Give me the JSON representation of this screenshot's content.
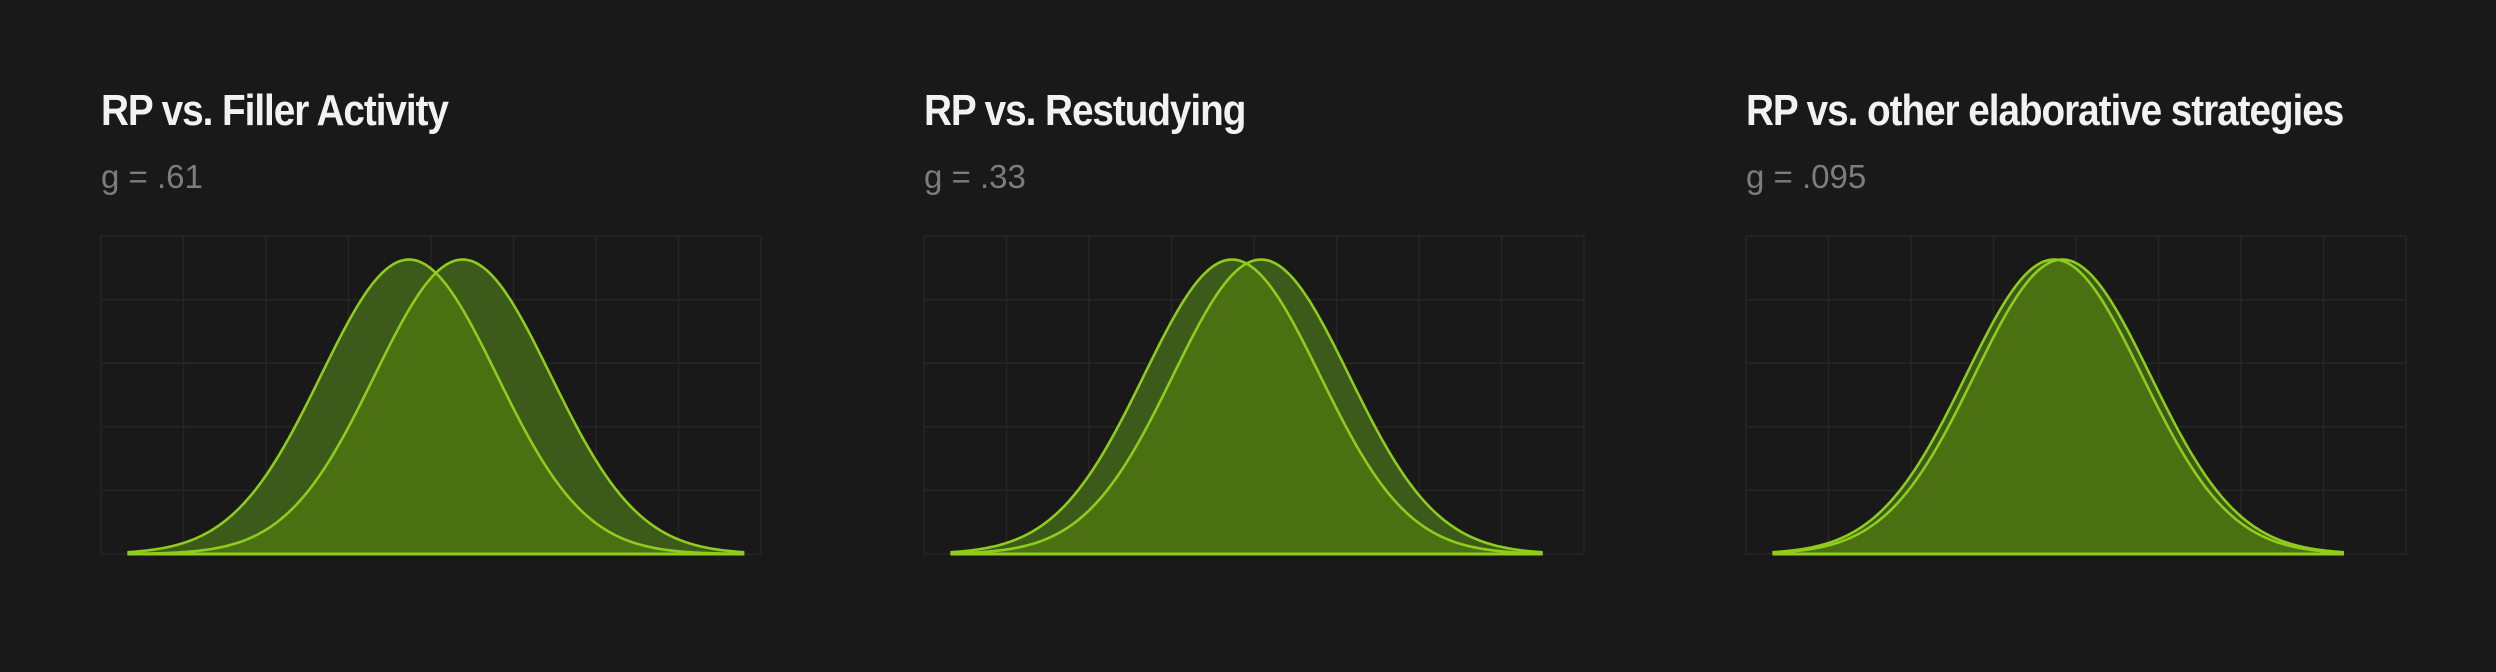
{
  "chart_data": [
    {
      "type": "area",
      "title": "RP vs. Filler Activity",
      "subtitle": "g = .61",
      "effect_size_g": 0.61,
      "xlim": [
        -3.5,
        4.0
      ],
      "ylim": [
        0,
        0.42
      ],
      "grid": true,
      "series": [
        {
          "mean": 0,
          "sd": 1
        },
        {
          "mean": 0.61,
          "sd": 1
        }
      ]
    },
    {
      "type": "area",
      "title": "RP vs. Restudying",
      "subtitle": "g = .33",
      "effect_size_g": 0.33,
      "xlim": [
        -3.5,
        4.0
      ],
      "ylim": [
        0,
        0.42
      ],
      "grid": true,
      "series": [
        {
          "mean": 0,
          "sd": 1
        },
        {
          "mean": 0.33,
          "sd": 1
        }
      ]
    },
    {
      "type": "area",
      "title": "RP vs. other elaborative strategies",
      "subtitle": "g = .095",
      "effect_size_g": 0.095,
      "xlim": [
        -3.5,
        4.0
      ],
      "ylim": [
        0,
        0.42
      ],
      "grid": true,
      "series": [
        {
          "mean": 0,
          "sd": 1
        },
        {
          "mean": 0.095,
          "sd": 1
        }
      ]
    }
  ],
  "colors": {
    "background": "#191919",
    "line": "#8fcc1b",
    "fill_overlap": "#4a7012",
    "fill_single": "#3c5a1a",
    "grid": "#262626",
    "title": "#f2f2f2",
    "subtitle": "#7d7d7d"
  }
}
